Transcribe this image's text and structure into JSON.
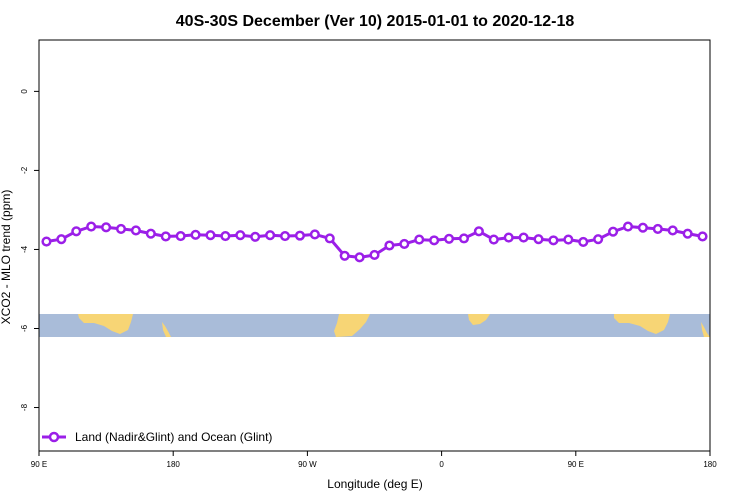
{
  "chart_data": {
    "type": "line",
    "title": "40S-30S December (Ver 10)   2015-01-01 to 2020-12-18",
    "xlabel": "Longitude (deg E)",
    "ylabel": "XCO2 - MLO trend (ppm)",
    "x_tick_labels": [
      "90 E",
      "180",
      "90 W",
      "0",
      "90 E",
      "180"
    ],
    "x_tick_values": [
      90,
      180,
      270,
      360,
      450,
      540
    ],
    "xlim": [
      90,
      540
    ],
    "y_tick_labels": [
      "0",
      "-2",
      "-4",
      "-6",
      "-8"
    ],
    "y_tick_values": [
      0,
      -2,
      -4,
      -6,
      -8
    ],
    "ylim": [
      -9.1,
      1.3
    ],
    "grid": false,
    "legend_position": "bottom-left",
    "series": [
      {
        "name": "Land (Nadir&Glint) and Ocean (Glint)",
        "color": "#9b1fe8",
        "x": [
          95,
          105,
          115,
          125,
          135,
          145,
          155,
          165,
          175,
          185,
          195,
          205,
          215,
          225,
          235,
          245,
          255,
          265,
          275,
          285,
          295,
          305,
          315,
          325,
          335,
          345,
          355,
          365,
          375,
          385,
          395,
          405,
          415,
          425,
          435,
          445,
          455,
          465,
          475,
          485,
          495,
          505,
          515,
          525,
          535
        ],
        "y": [
          -3.8,
          -3.74,
          -3.54,
          -3.42,
          -3.44,
          -3.48,
          -3.52,
          -3.6,
          -3.67,
          -3.66,
          -3.63,
          -3.64,
          -3.66,
          -3.64,
          -3.68,
          -3.64,
          -3.66,
          -3.65,
          -3.62,
          -3.72,
          -4.16,
          -4.2,
          -4.14,
          -3.9,
          -3.86,
          -3.75,
          -3.77,
          -3.73,
          -3.72,
          -3.54,
          -3.75,
          -3.7,
          -3.7,
          -3.74,
          -3.77,
          -3.75,
          -3.81,
          -3.74,
          -3.55,
          -3.42,
          -3.45,
          -3.48,
          -3.52,
          -3.6,
          -3.67
        ]
      }
    ]
  },
  "colors": {
    "line": "#9b1fe8",
    "ocean_band": "#a9bcd9",
    "land": "#f7d575"
  }
}
